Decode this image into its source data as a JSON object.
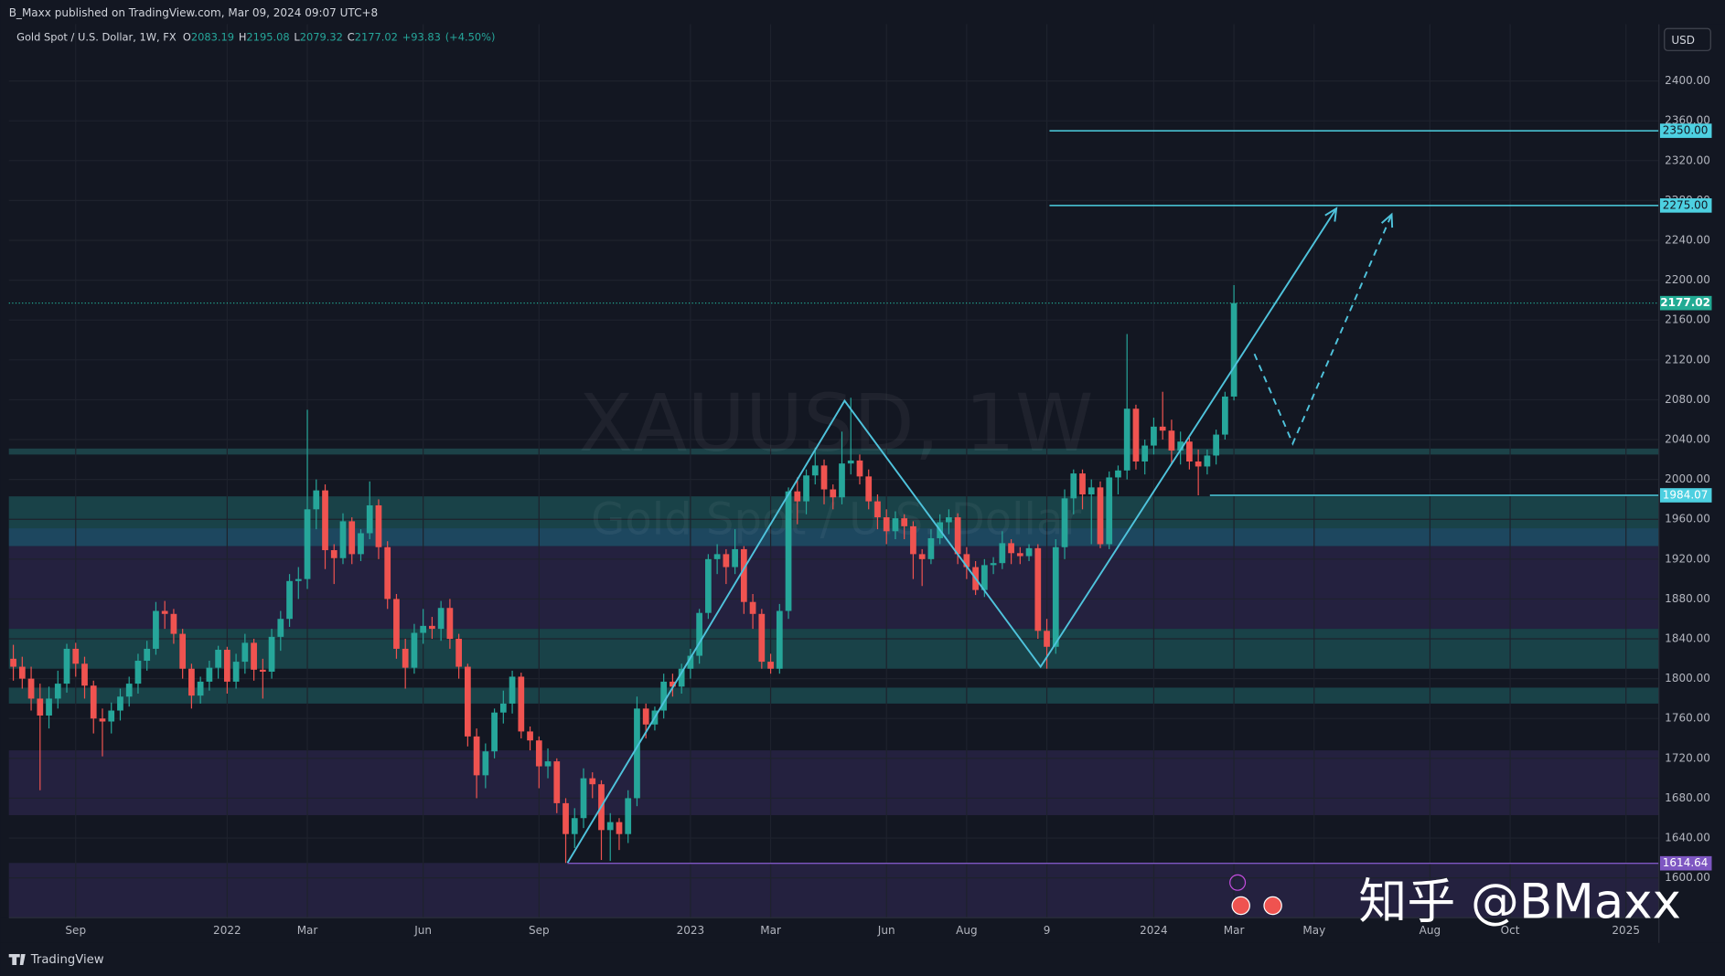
{
  "published": "B_Maxx published on TradingView.com, Mar 09, 2024 09:07 UTC+8",
  "header": {
    "symbol": "Gold Spot / U.S. Dollar, 1W, FX",
    "o": "O",
    "h": "H",
    "l": "L",
    "c": "C",
    "change": "+93.83",
    "change_pct": "(+4.50%)"
  },
  "currency": "USD",
  "watermark": {
    "ticker": "XAUUSD, 1W",
    "name": "Gold Spot / U.S. Dollar"
  },
  "branding": "TradingView",
  "author_mark": "知乎 @BMaxx",
  "chart_data": {
    "type": "candlestick",
    "grid": true,
    "up_color": "#26a69a",
    "down_color": "#ef5350",
    "xlim": [
      -0.5,
      184.7
    ],
    "ylim": [
      1560,
      2457
    ],
    "xticks": [
      {
        "value": 7,
        "label": "Sep"
      },
      {
        "value": 24,
        "label": "2022"
      },
      {
        "value": 33,
        "label": "Mar"
      },
      {
        "value": 46,
        "label": "Jun"
      },
      {
        "value": 59,
        "label": "Sep"
      },
      {
        "value": 76,
        "label": "2023"
      },
      {
        "value": 85,
        "label": "Mar"
      },
      {
        "value": 98,
        "label": "Jun"
      },
      {
        "value": 107,
        "label": "Aug"
      },
      {
        "value": 116,
        "label": "9"
      },
      {
        "value": 128,
        "label": "2024"
      },
      {
        "value": 137,
        "label": "Mar"
      },
      {
        "value": 146,
        "label": "May"
      },
      {
        "value": 159,
        "label": "Aug"
      },
      {
        "value": 168,
        "label": "Oct"
      },
      {
        "value": 181,
        "label": "2025"
      }
    ],
    "yticks": [
      {
        "value": 1600,
        "label": "1600.00"
      },
      {
        "value": 1640,
        "label": "1640.00"
      },
      {
        "value": 1680,
        "label": "1680.00"
      },
      {
        "value": 1720,
        "label": "1720.00"
      },
      {
        "value": 1760,
        "label": "1760.00"
      },
      {
        "value": 1800,
        "label": "1800.00"
      },
      {
        "value": 1840,
        "label": "1840.00"
      },
      {
        "value": 1880,
        "label": "1880.00"
      },
      {
        "value": 1920,
        "label": "1920.00"
      },
      {
        "value": 1960,
        "label": "1960.00"
      },
      {
        "value": 2000,
        "label": "2000.00"
      },
      {
        "value": 2040,
        "label": "2040.00"
      },
      {
        "value": 2080,
        "label": "2080.00"
      },
      {
        "value": 2120,
        "label": "2120.00"
      },
      {
        "value": 2160,
        "label": "2160.00"
      },
      {
        "value": 2200,
        "label": "2200.00"
      },
      {
        "value": 2240,
        "label": "2240.00"
      },
      {
        "value": 2280,
        "label": "2280.00"
      },
      {
        "value": 2320,
        "label": "2320.00"
      },
      {
        "value": 2360,
        "label": "2360.00"
      },
      {
        "value": 2400,
        "label": "2400.00"
      }
    ],
    "zones": [
      {
        "from": 2031,
        "to": 2025,
        "color": "#1f4a4f"
      },
      {
        "from": 1983,
        "to": 1951,
        "color": "#1b4a4f"
      },
      {
        "from": 1951,
        "to": 1933,
        "color": "#20506a"
      },
      {
        "from": 1933,
        "to": 1850,
        "color": "#282344"
      },
      {
        "from": 1850,
        "to": 1810,
        "color": "#1b4a4f"
      },
      {
        "from": 1791,
        "to": 1775,
        "color": "#1b4a4f"
      },
      {
        "from": 1728,
        "to": 1663,
        "color": "#282344"
      },
      {
        "from": 1615,
        "to": 1560,
        "color": "#282344"
      }
    ],
    "levels": [
      {
        "value": 2350,
        "label": "2350.00",
        "from": 116.3,
        "color": "#4dd0e1",
        "text_color": "#131722"
      },
      {
        "value": 2275,
        "label": "2275.00",
        "from": 116.3,
        "color": "#4dd0e1",
        "text_color": "#131722"
      },
      {
        "value": 1984.07,
        "label": "1984.07",
        "from": 134.3,
        "color": "#4dd0e1",
        "text_color": "#ffffff"
      },
      {
        "value": 1614.64,
        "label": "1614.64",
        "from": 62.2,
        "color": "#7e57c2",
        "text_color": "#ffffff"
      }
    ],
    "current_price_color": "#22ab94",
    "trendlines": [
      {
        "x": [
          62.2,
          93.3,
          115.3,
          148.5
        ],
        "y": [
          1615,
          2079,
          1812,
          2272
        ],
        "color": "#4fc3dc",
        "dashed": false
      },
      {
        "x": [
          139.3,
          143.6,
          154.7
        ],
        "y": [
          2126,
          2036,
          2266
        ],
        "color": "#4fc3dc",
        "dashed": true
      }
    ],
    "ohlc": [
      [
        1820,
        1834,
        1798,
        1812
      ],
      [
        1812,
        1822,
        1790,
        1800
      ],
      [
        1800,
        1812,
        1768,
        1780
      ],
      [
        1780,
        1795,
        1688,
        1763
      ],
      [
        1763,
        1792,
        1750,
        1780
      ],
      [
        1780,
        1808,
        1770,
        1795
      ],
      [
        1795,
        1835,
        1786,
        1830
      ],
      [
        1830,
        1836,
        1802,
        1815
      ],
      [
        1815,
        1822,
        1780,
        1793
      ],
      [
        1793,
        1798,
        1745,
        1760
      ],
      [
        1760,
        1770,
        1722,
        1757
      ],
      [
        1757,
        1776,
        1745,
        1768
      ],
      [
        1768,
        1790,
        1758,
        1782
      ],
      [
        1782,
        1802,
        1772,
        1795
      ],
      [
        1795,
        1825,
        1785,
        1818
      ],
      [
        1818,
        1838,
        1808,
        1830
      ],
      [
        1830,
        1877,
        1824,
        1868
      ],
      [
        1868,
        1878,
        1850,
        1865
      ],
      [
        1865,
        1870,
        1835,
        1845
      ],
      [
        1845,
        1850,
        1800,
        1810
      ],
      [
        1810,
        1815,
        1770,
        1783
      ],
      [
        1783,
        1802,
        1775,
        1797
      ],
      [
        1797,
        1818,
        1788,
        1811
      ],
      [
        1811,
        1833,
        1800,
        1829
      ],
      [
        1829,
        1832,
        1785,
        1797
      ],
      [
        1797,
        1825,
        1790,
        1817
      ],
      [
        1817,
        1845,
        1805,
        1836
      ],
      [
        1836,
        1840,
        1798,
        1809
      ],
      [
        1809,
        1820,
        1780,
        1807
      ],
      [
        1807,
        1850,
        1800,
        1842
      ],
      [
        1842,
        1868,
        1828,
        1860
      ],
      [
        1860,
        1905,
        1852,
        1898
      ],
      [
        1898,
        1912,
        1880,
        1900
      ],
      [
        1900,
        2070,
        1890,
        1970
      ],
      [
        1970,
        2000,
        1950,
        1989
      ],
      [
        1989,
        1995,
        1910,
        1929
      ],
      [
        1929,
        1935,
        1895,
        1921
      ],
      [
        1921,
        1966,
        1915,
        1958
      ],
      [
        1958,
        1962,
        1915,
        1925
      ],
      [
        1925,
        1950,
        1918,
        1946
      ],
      [
        1946,
        1998,
        1940,
        1974
      ],
      [
        1974,
        1980,
        1920,
        1932
      ],
      [
        1932,
        1938,
        1870,
        1880
      ],
      [
        1880,
        1885,
        1820,
        1830
      ],
      [
        1830,
        1840,
        1790,
        1811
      ],
      [
        1811,
        1855,
        1805,
        1846
      ],
      [
        1846,
        1870,
        1835,
        1853
      ],
      [
        1853,
        1862,
        1840,
        1850
      ],
      [
        1850,
        1878,
        1838,
        1871
      ],
      [
        1871,
        1880,
        1830,
        1840
      ],
      [
        1840,
        1845,
        1800,
        1812
      ],
      [
        1812,
        1815,
        1732,
        1742
      ],
      [
        1742,
        1750,
        1680,
        1703
      ],
      [
        1703,
        1735,
        1690,
        1727
      ],
      [
        1727,
        1770,
        1720,
        1766
      ],
      [
        1766,
        1788,
        1755,
        1775
      ],
      [
        1775,
        1808,
        1765,
        1802
      ],
      [
        1802,
        1806,
        1740,
        1747
      ],
      [
        1747,
        1752,
        1728,
        1738
      ],
      [
        1738,
        1742,
        1690,
        1712
      ],
      [
        1712,
        1730,
        1700,
        1717
      ],
      [
        1717,
        1720,
        1665,
        1675
      ],
      [
        1675,
        1680,
        1615,
        1644
      ],
      [
        1644,
        1670,
        1630,
        1660
      ],
      [
        1660,
        1710,
        1650,
        1700
      ],
      [
        1700,
        1706,
        1680,
        1694
      ],
      [
        1694,
        1698,
        1618,
        1648
      ],
      [
        1648,
        1665,
        1617,
        1656
      ],
      [
        1656,
        1660,
        1628,
        1644
      ],
      [
        1644,
        1688,
        1635,
        1680
      ],
      [
        1680,
        1782,
        1672,
        1770
      ],
      [
        1770,
        1775,
        1740,
        1754
      ],
      [
        1754,
        1772,
        1748,
        1768
      ],
      [
        1768,
        1805,
        1760,
        1797
      ],
      [
        1797,
        1805,
        1782,
        1792
      ],
      [
        1792,
        1815,
        1785,
        1810
      ],
      [
        1810,
        1830,
        1800,
        1823
      ],
      [
        1823,
        1870,
        1815,
        1866
      ],
      [
        1866,
        1925,
        1860,
        1920
      ],
      [
        1920,
        1935,
        1905,
        1925
      ],
      [
        1925,
        1930,
        1895,
        1912
      ],
      [
        1912,
        1950,
        1905,
        1930
      ],
      [
        1930,
        1933,
        1865,
        1877
      ],
      [
        1877,
        1885,
        1850,
        1865
      ],
      [
        1865,
        1870,
        1810,
        1817
      ],
      [
        1817,
        1825,
        1805,
        1810
      ],
      [
        1810,
        1875,
        1805,
        1868
      ],
      [
        1868,
        1992,
        1860,
        1988
      ],
      [
        1988,
        2002,
        1955,
        1978
      ],
      [
        1978,
        2010,
        1965,
        2004
      ],
      [
        2004,
        2032,
        1995,
        2014
      ],
      [
        2014,
        2020,
        1975,
        1990
      ],
      [
        1990,
        1995,
        1970,
        1982
      ],
      [
        1982,
        2048,
        1975,
        2016
      ],
      [
        2016,
        2082,
        2005,
        2019
      ],
      [
        2019,
        2025,
        1995,
        2003
      ],
      [
        2003,
        2010,
        1970,
        1978
      ],
      [
        1978,
        1985,
        1950,
        1962
      ],
      [
        1962,
        1970,
        1935,
        1948
      ],
      [
        1948,
        1968,
        1940,
        1961
      ],
      [
        1961,
        1965,
        1940,
        1953
      ],
      [
        1953,
        1958,
        1900,
        1925
      ],
      [
        1925,
        1930,
        1893,
        1920
      ],
      [
        1920,
        1950,
        1915,
        1941
      ],
      [
        1941,
        1965,
        1935,
        1957
      ],
      [
        1957,
        1970,
        1945,
        1962
      ],
      [
        1962,
        1966,
        1915,
        1925
      ],
      [
        1925,
        1932,
        1900,
        1912
      ],
      [
        1912,
        1918,
        1884,
        1889
      ],
      [
        1889,
        1920,
        1882,
        1914
      ],
      [
        1914,
        1922,
        1905,
        1916
      ],
      [
        1916,
        1948,
        1910,
        1936
      ],
      [
        1936,
        1940,
        1915,
        1926
      ],
      [
        1926,
        1932,
        1915,
        1923
      ],
      [
        1923,
        1935,
        1918,
        1931
      ],
      [
        1931,
        1935,
        1840,
        1848
      ],
      [
        1848,
        1860,
        1810,
        1832
      ],
      [
        1832,
        1940,
        1825,
        1932
      ],
      [
        1932,
        1990,
        1920,
        1981
      ],
      [
        1981,
        2010,
        1965,
        2006
      ],
      [
        2006,
        2010,
        1970,
        1985
      ],
      [
        1985,
        2000,
        1935,
        1992
      ],
      [
        1992,
        1998,
        1931,
        1935
      ],
      [
        1935,
        2008,
        1930,
        2002
      ],
      [
        2002,
        2014,
        1985,
        2009
      ],
      [
        2009,
        2146,
        2000,
        2071
      ],
      [
        2071,
        2075,
        2010,
        2018
      ],
      [
        2018,
        2040,
        2005,
        2034
      ],
      [
        2034,
        2062,
        2025,
        2053
      ],
      [
        2053,
        2088,
        2040,
        2049
      ],
      [
        2049,
        2060,
        2015,
        2029
      ],
      [
        2029,
        2048,
        2015,
        2038
      ],
      [
        2038,
        2042,
        2010,
        2018
      ],
      [
        2018,
        2030,
        1984.07,
        2013
      ],
      [
        2013,
        2030,
        2005,
        2024
      ],
      [
        2024,
        2050,
        2015,
        2045
      ],
      [
        2045,
        2088,
        2040,
        2083.19
      ],
      [
        2083.19,
        2195.08,
        2079.32,
        2177.02
      ]
    ]
  }
}
